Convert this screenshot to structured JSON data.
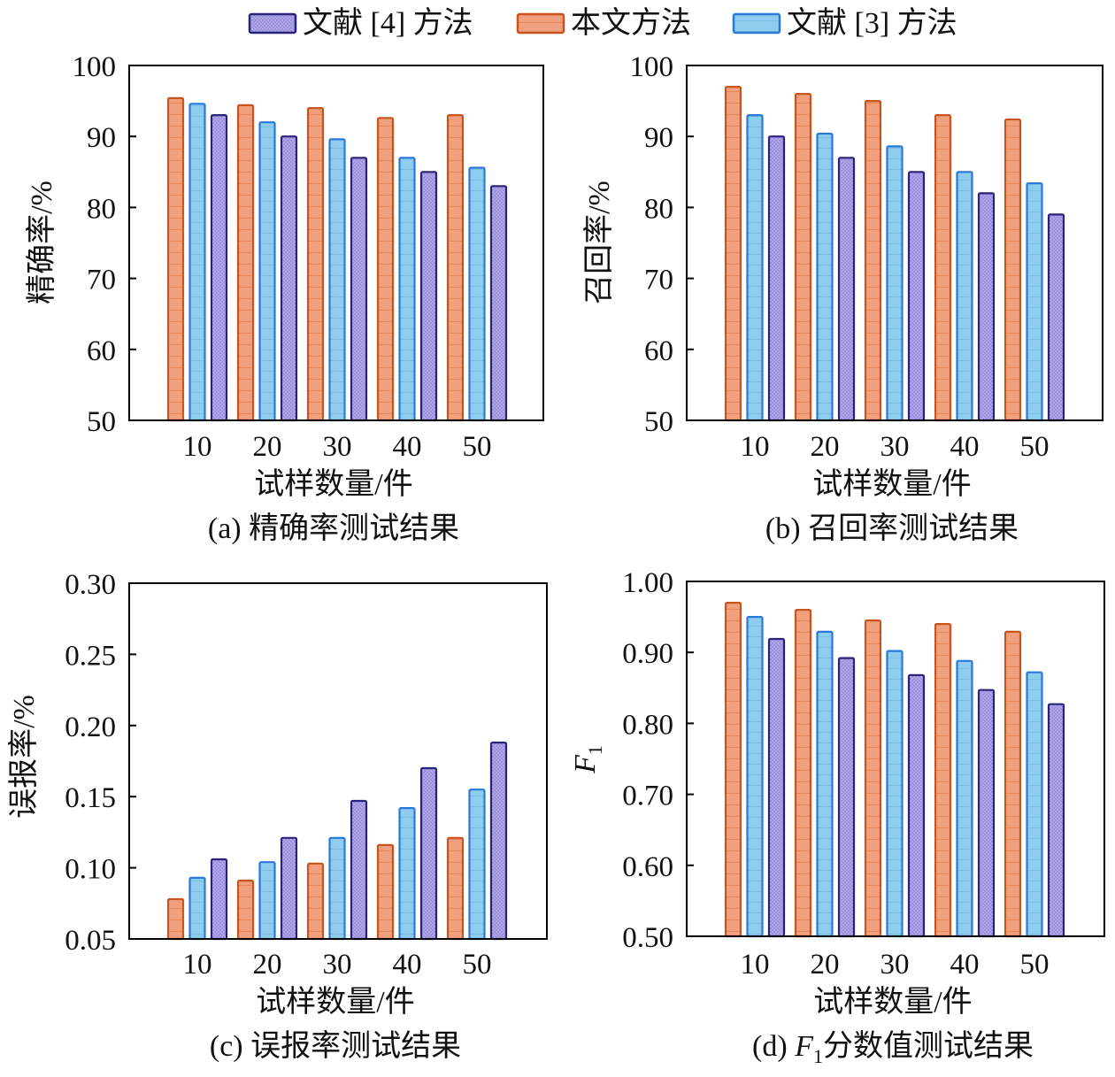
{
  "legend": {
    "items": [
      {
        "key": "ref4",
        "label": "文献 [4] 方法",
        "fill": "#9b8fe0",
        "stroke": "#2a237a"
      },
      {
        "key": "ours",
        "label": "本文方法",
        "fill": "#f0a07e",
        "stroke": "#c8541e"
      },
      {
        "key": "ref3",
        "label": "文献 [3] 方法",
        "fill": "#8fcdee",
        "stroke": "#2a78d8"
      }
    ]
  },
  "chart_data": [
    {
      "id": "a",
      "type": "bar",
      "caption": "(a) 精确率测试结果",
      "xlabel": "试样数量/件",
      "ylabel": "精确率/%",
      "categories": [
        "10",
        "20",
        "30",
        "40",
        "50"
      ],
      "ylim": [
        50,
        100
      ],
      "yticks": [
        "50",
        "60",
        "70",
        "80",
        "90",
        "100"
      ],
      "series": [
        {
          "key": "ours",
          "name": "本文方法",
          "values": [
            95.4,
            94.4,
            94.0,
            92.6,
            93.0
          ]
        },
        {
          "key": "ref3",
          "name": "文献 [3] 方法",
          "values": [
            94.6,
            92.0,
            89.6,
            87.0,
            85.6
          ]
        },
        {
          "key": "ref4",
          "name": "文献 [4] 方法",
          "values": [
            93.0,
            90.0,
            87.0,
            85.0,
            83.0
          ]
        }
      ]
    },
    {
      "id": "b",
      "type": "bar",
      "caption": "(b) 召回率测试结果",
      "xlabel": "试样数量/件",
      "ylabel": "召回率/%",
      "categories": [
        "10",
        "20",
        "30",
        "40",
        "50"
      ],
      "ylim": [
        50,
        100
      ],
      "yticks": [
        "50",
        "60",
        "70",
        "80",
        "90",
        "100"
      ],
      "series": [
        {
          "key": "ours",
          "name": "本文方法",
          "values": [
            97.0,
            96.0,
            95.0,
            93.0,
            92.4
          ]
        },
        {
          "key": "ref3",
          "name": "文献 [3] 方法",
          "values": [
            93.0,
            90.4,
            88.6,
            85.0,
            83.4
          ]
        },
        {
          "key": "ref4",
          "name": "文献 [4] 方法",
          "values": [
            90.0,
            87.0,
            85.0,
            82.0,
            79.0
          ]
        }
      ]
    },
    {
      "id": "c",
      "type": "bar",
      "caption": "(c) 误报率测试结果",
      "xlabel": "试样数量/件",
      "ylabel": "误报率/%",
      "categories": [
        "10",
        "20",
        "30",
        "40",
        "50"
      ],
      "ylim": [
        0.05,
        0.3
      ],
      "yticks": [
        "0.05",
        "0.10",
        "0.15",
        "0.20",
        "0.25",
        "0.30"
      ],
      "series": [
        {
          "key": "ours",
          "name": "本文方法",
          "values": [
            0.078,
            0.091,
            0.103,
            0.116,
            0.121
          ]
        },
        {
          "key": "ref3",
          "name": "文献 [3] 方法",
          "values": [
            0.093,
            0.104,
            0.121,
            0.142,
            0.155
          ]
        },
        {
          "key": "ref4",
          "name": "文献 [4] 方法",
          "values": [
            0.106,
            0.121,
            0.147,
            0.17,
            0.188
          ]
        }
      ]
    },
    {
      "id": "d",
      "type": "bar",
      "caption_prefix": "(d)",
      "caption_var": "F",
      "caption_sub": "1",
      "caption_suffix": "分数值测试结果",
      "xlabel": "试样数量/件",
      "ylabel_var": "F",
      "ylabel_sub": "1",
      "categories": [
        "10",
        "20",
        "30",
        "40",
        "50"
      ],
      "ylim": [
        0.5,
        1.0
      ],
      "yticks": [
        "0.50",
        "0.60",
        "0.70",
        "0.80",
        "0.90",
        "1.00"
      ],
      "series": [
        {
          "key": "ours",
          "name": "本文方法",
          "values": [
            0.97,
            0.96,
            0.945,
            0.94,
            0.929
          ]
        },
        {
          "key": "ref3",
          "name": "文献 [3] 方法",
          "values": [
            0.95,
            0.929,
            0.902,
            0.888,
            0.872
          ]
        },
        {
          "key": "ref4",
          "name": "文献 [4] 方法",
          "values": [
            0.919,
            0.892,
            0.868,
            0.847,
            0.827
          ]
        }
      ]
    }
  ]
}
